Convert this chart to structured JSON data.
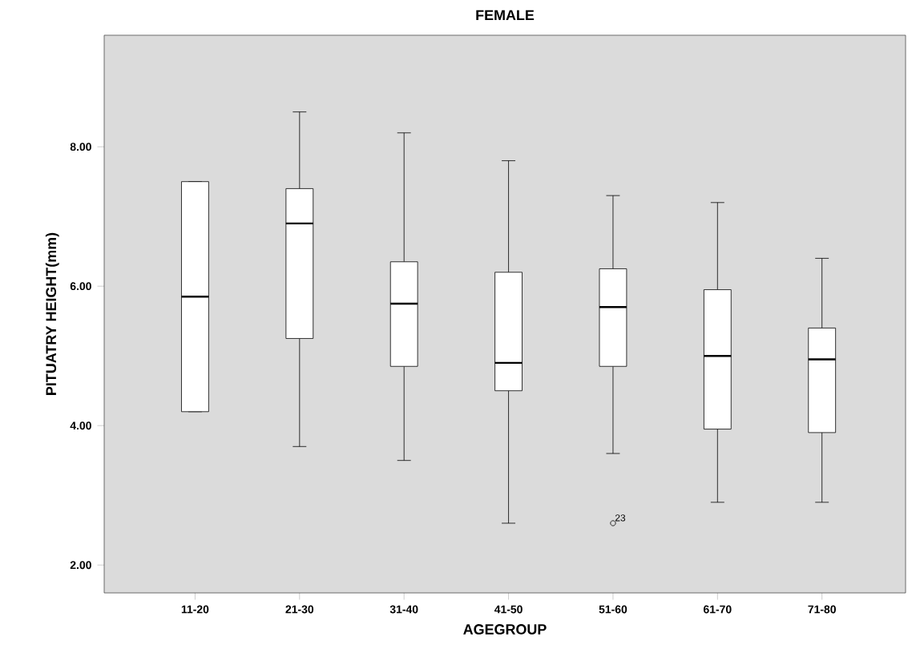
{
  "chart_data": {
    "type": "box",
    "title": "FEMALE",
    "xlabel": "AGEGROUP",
    "ylabel": "PITUATRY HEIGHT(mm)",
    "categories": [
      "11-20",
      "21-30",
      "31-40",
      "41-50",
      "51-60",
      "61-70",
      "71-80"
    ],
    "boxes": [
      {
        "low": 4.2,
        "q1": 4.2,
        "median": 5.85,
        "q3": 7.5,
        "high": 7.5
      },
      {
        "low": 3.7,
        "q1": 5.25,
        "median": 6.9,
        "q3": 7.4,
        "high": 8.5
      },
      {
        "low": 3.5,
        "q1": 4.85,
        "median": 5.75,
        "q3": 6.35,
        "high": 8.2
      },
      {
        "low": 2.6,
        "q1": 4.5,
        "median": 4.9,
        "q3": 6.2,
        "high": 7.8
      },
      {
        "low": 3.6,
        "q1": 4.85,
        "median": 5.7,
        "q3": 6.25,
        "high": 7.3,
        "outliers": [
          2.6
        ]
      },
      {
        "low": 2.9,
        "q1": 3.95,
        "median": 5.0,
        "q3": 5.95,
        "high": 7.2
      },
      {
        "low": 2.9,
        "q1": 3.9,
        "median": 4.95,
        "q3": 5.4,
        "high": 6.4
      }
    ],
    "ylim": [
      1.6,
      9.6
    ],
    "yticks": [
      {
        "value": 2,
        "label": "2.00"
      },
      {
        "value": 4,
        "label": "4.00"
      },
      {
        "value": 6,
        "label": "6.00"
      },
      {
        "value": 8,
        "label": "8.00"
      }
    ],
    "annotations": [
      "23"
    ]
  }
}
